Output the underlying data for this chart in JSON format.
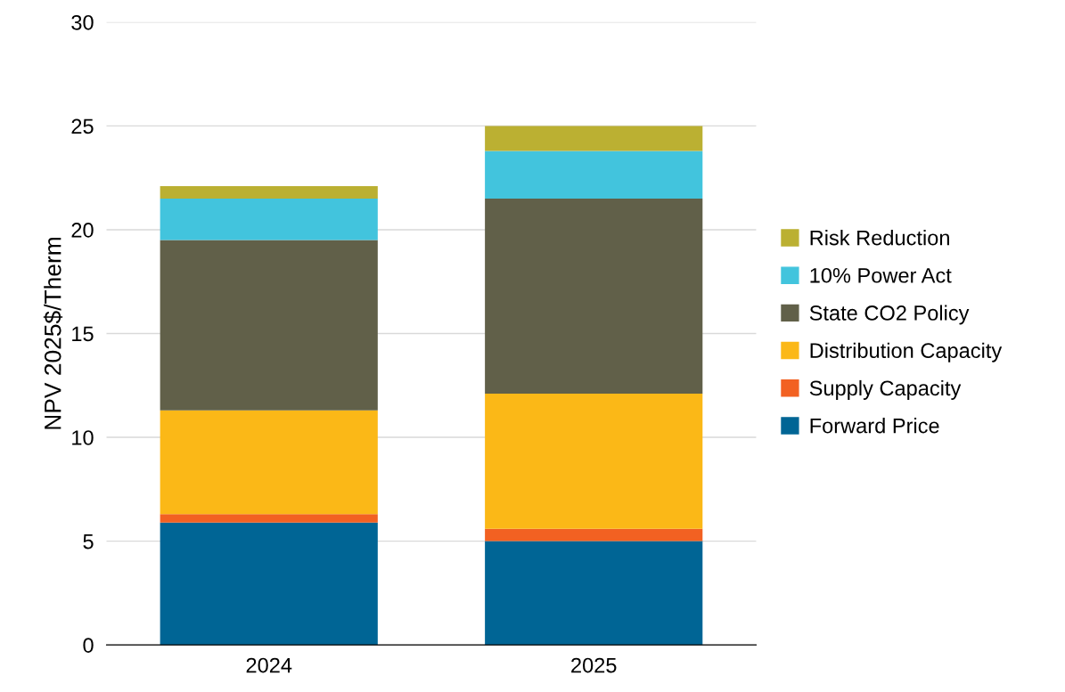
{
  "chart_data": {
    "type": "bar",
    "stacked": true,
    "ylabel": "NPV 2025$/Therm",
    "categories": [
      "2024",
      "2025"
    ],
    "series": [
      {
        "name": "Forward Price",
        "color": "#006595",
        "values": [
          5.9,
          5.0
        ]
      },
      {
        "name": "Supply Capacity",
        "color": "#f26122",
        "values": [
          0.4,
          0.6
        ]
      },
      {
        "name": "Distribution Capacity",
        "color": "#fbb817",
        "values": [
          5.0,
          6.5
        ]
      },
      {
        "name": "State CO2 Policy",
        "color": "#616049",
        "values": [
          8.2,
          9.4
        ]
      },
      {
        "name": "10% Power Act",
        "color": "#42c4dd",
        "values": [
          2.0,
          2.3
        ]
      },
      {
        "name": "Risk Reduction",
        "color": "#bbb032",
        "values": [
          0.6,
          1.2
        ]
      }
    ],
    "ylim": [
      0,
      30
    ],
    "yticks": [
      0,
      5,
      10,
      15,
      20,
      25,
      30
    ],
    "grid": "y",
    "legend": "right"
  }
}
